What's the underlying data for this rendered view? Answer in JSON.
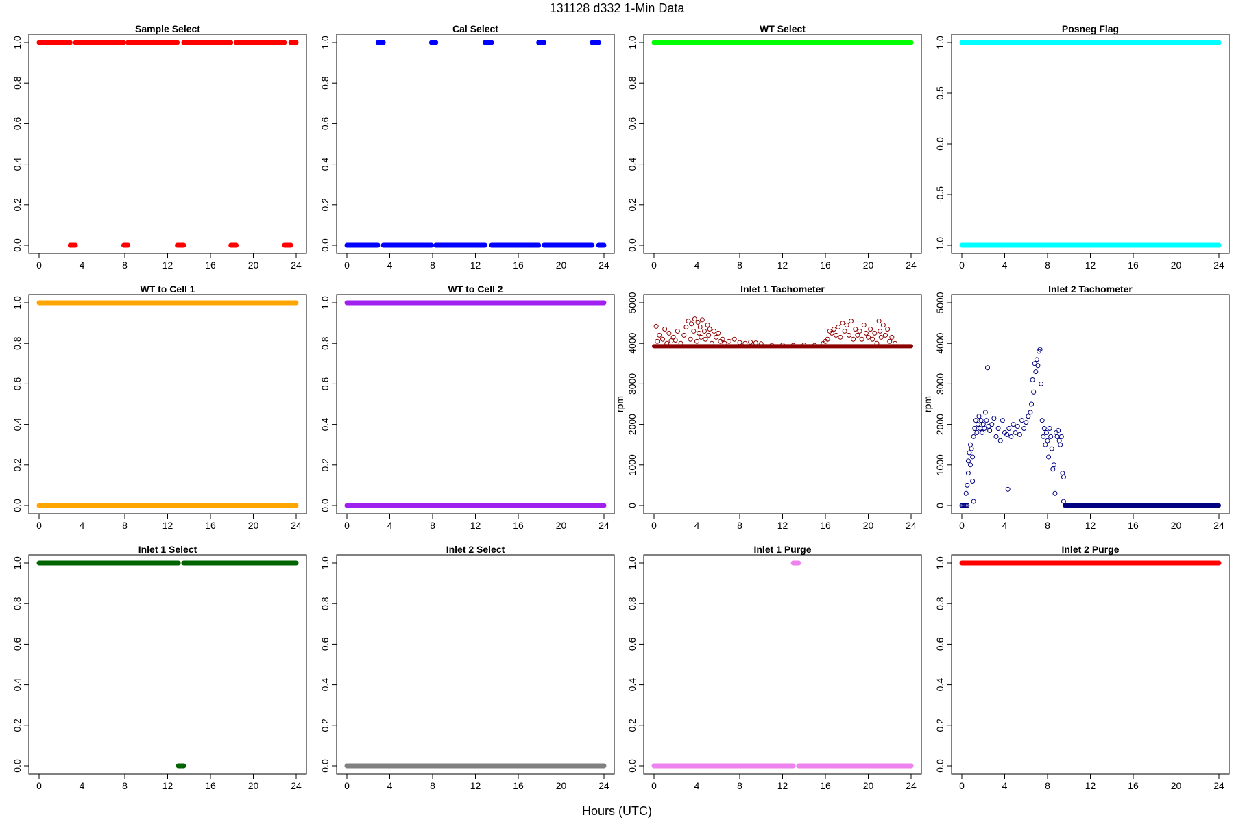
{
  "figure": {
    "title": "131128   d332   1-Min Data",
    "xlabel": "Hours (UTC)"
  },
  "chart_data": [
    {
      "type": "scatter",
      "title": "Sample Select",
      "ylabel": "",
      "color": "#ff0000",
      "xlim": [
        0,
        24
      ],
      "ylim": [
        0,
        1
      ],
      "x_ticks": [
        0,
        4,
        8,
        12,
        16,
        20,
        24
      ],
      "y_ticks": [
        0.0,
        0.2,
        0.4,
        0.6,
        0.8,
        1.0
      ],
      "y_tick_labels": [
        "0.0",
        "0.2",
        "0.4",
        "0.6",
        "0.8",
        "1.0"
      ],
      "segments": [
        {
          "from": 0.0,
          "to": 2.9,
          "y": 1
        },
        {
          "from": 2.9,
          "to": 3.4,
          "y": 0
        },
        {
          "from": 3.4,
          "to": 7.9,
          "y": 1
        },
        {
          "from": 7.9,
          "to": 8.3,
          "y": 0
        },
        {
          "from": 8.3,
          "to": 12.9,
          "y": 1
        },
        {
          "from": 12.9,
          "to": 13.5,
          "y": 0
        },
        {
          "from": 13.5,
          "to": 17.9,
          "y": 1
        },
        {
          "from": 17.9,
          "to": 18.4,
          "y": 0
        },
        {
          "from": 18.4,
          "to": 22.9,
          "y": 1
        },
        {
          "from": 22.9,
          "to": 23.5,
          "y": 0
        },
        {
          "from": 23.5,
          "to": 24.0,
          "y": 1
        }
      ]
    },
    {
      "type": "scatter",
      "title": "Cal Select",
      "ylabel": "",
      "color": "#0000ff",
      "xlim": [
        0,
        24
      ],
      "ylim": [
        0,
        1
      ],
      "x_ticks": [
        0,
        4,
        8,
        12,
        16,
        20,
        24
      ],
      "y_ticks": [
        0.0,
        0.2,
        0.4,
        0.6,
        0.8,
        1.0
      ],
      "y_tick_labels": [
        "0.0",
        "0.2",
        "0.4",
        "0.6",
        "0.8",
        "1.0"
      ],
      "segments": [
        {
          "from": 0.0,
          "to": 2.9,
          "y": 0
        },
        {
          "from": 2.9,
          "to": 3.4,
          "y": 1
        },
        {
          "from": 3.4,
          "to": 7.9,
          "y": 0
        },
        {
          "from": 7.9,
          "to": 8.3,
          "y": 1
        },
        {
          "from": 8.3,
          "to": 12.9,
          "y": 0
        },
        {
          "from": 12.9,
          "to": 13.5,
          "y": 1
        },
        {
          "from": 13.5,
          "to": 17.9,
          "y": 0
        },
        {
          "from": 17.9,
          "to": 18.4,
          "y": 1
        },
        {
          "from": 18.4,
          "to": 22.9,
          "y": 0
        },
        {
          "from": 22.9,
          "to": 23.5,
          "y": 1
        },
        {
          "from": 23.5,
          "to": 24.0,
          "y": 0
        }
      ]
    },
    {
      "type": "scatter",
      "title": "WT Select",
      "ylabel": "",
      "color": "#00ff00",
      "xlim": [
        0,
        24
      ],
      "ylim": [
        0,
        1
      ],
      "x_ticks": [
        0,
        4,
        8,
        12,
        16,
        20,
        24
      ],
      "y_ticks": [
        0.0,
        0.2,
        0.4,
        0.6,
        0.8,
        1.0
      ],
      "y_tick_labels": [
        "0.0",
        "0.2",
        "0.4",
        "0.6",
        "0.8",
        "1.0"
      ],
      "segments": [
        {
          "from": 0.0,
          "to": 24.0,
          "y": 1
        }
      ]
    },
    {
      "type": "scatter",
      "title": "Posneg Flag",
      "ylabel": "",
      "color": "#00ffff",
      "xlim": [
        0,
        24
      ],
      "ylim": [
        -1,
        1
      ],
      "x_ticks": [
        0,
        4,
        8,
        12,
        16,
        20,
        24
      ],
      "y_ticks": [
        -1.0,
        -0.5,
        0.0,
        0.5,
        1.0
      ],
      "y_tick_labels": [
        "-1.0",
        "-0.5",
        "0.0",
        "0.5",
        "1.0"
      ],
      "segments": [
        {
          "from": 0.0,
          "to": 24.0,
          "y": 1
        },
        {
          "from": 0.0,
          "to": 24.0,
          "y": -1
        }
      ]
    },
    {
      "type": "scatter",
      "title": "WT to Cell 1",
      "ylabel": "",
      "color": "#ffa500",
      "xlim": [
        0,
        24
      ],
      "ylim": [
        0,
        1
      ],
      "x_ticks": [
        0,
        4,
        8,
        12,
        16,
        20,
        24
      ],
      "y_ticks": [
        0.0,
        0.2,
        0.4,
        0.6,
        0.8,
        1.0
      ],
      "y_tick_labels": [
        "0.0",
        "0.2",
        "0.4",
        "0.6",
        "0.8",
        "1.0"
      ],
      "segments": [
        {
          "from": 0.0,
          "to": 24.0,
          "y": 1
        },
        {
          "from": 0.0,
          "to": 24.0,
          "y": 0
        }
      ]
    },
    {
      "type": "scatter",
      "title": "WT to Cell 2",
      "ylabel": "",
      "color": "#a020f0",
      "xlim": [
        0,
        24
      ],
      "ylim": [
        0,
        1
      ],
      "x_ticks": [
        0,
        4,
        8,
        12,
        16,
        20,
        24
      ],
      "y_ticks": [
        0.0,
        0.2,
        0.4,
        0.6,
        0.8,
        1.0
      ],
      "y_tick_labels": [
        "0.0",
        "0.2",
        "0.4",
        "0.6",
        "0.8",
        "1.0"
      ],
      "segments": [
        {
          "from": 0.0,
          "to": 24.0,
          "y": 1
        },
        {
          "from": 0.0,
          "to": 24.0,
          "y": 0
        }
      ]
    },
    {
      "type": "scatter",
      "title": "Inlet 1 Tachometer",
      "ylabel": "rpm",
      "color": "#8b0000",
      "marker": "circle",
      "xlim": [
        0,
        24
      ],
      "ylim": [
        0,
        5000
      ],
      "x_ticks": [
        0,
        4,
        8,
        12,
        16,
        20,
        24
      ],
      "y_ticks": [
        0,
        1000,
        2000,
        3000,
        4000,
        5000
      ],
      "y_tick_labels": [
        "0",
        "1000",
        "2000",
        "3000",
        "4000",
        "5000"
      ],
      "baseline": {
        "from": 0.0,
        "to": 24.0,
        "y": 3930
      },
      "points": [
        [
          0.2,
          4420
        ],
        [
          0.3,
          4050
        ],
        [
          0.5,
          4200
        ],
        [
          0.8,
          4100
        ],
        [
          1.0,
          4350
        ],
        [
          1.2,
          4000
        ],
        [
          1.4,
          4250
        ],
        [
          1.6,
          4060
        ],
        [
          1.8,
          4150
        ],
        [
          2.0,
          4080
        ],
        [
          2.2,
          4300
        ],
        [
          2.5,
          4000
        ],
        [
          2.8,
          4200
        ],
        [
          3.0,
          4400
        ],
        [
          3.2,
          4550
        ],
        [
          3.4,
          4100
        ],
        [
          3.5,
          4480
        ],
        [
          3.7,
          4300
        ],
        [
          3.8,
          4600
        ],
        [
          4.0,
          4050
        ],
        [
          4.1,
          4520
        ],
        [
          4.2,
          4250
        ],
        [
          4.3,
          4400
        ],
        [
          4.4,
          4150
        ],
        [
          4.5,
          4580
        ],
        [
          4.7,
          4300
        ],
        [
          4.8,
          4100
        ],
        [
          5.0,
          4450
        ],
        [
          5.1,
          4200
        ],
        [
          5.2,
          4350
        ],
        [
          5.4,
          4000
        ],
        [
          5.6,
          4300
        ],
        [
          5.8,
          4150
        ],
        [
          6.0,
          4250
        ],
        [
          6.2,
          4050
        ],
        [
          6.4,
          4100
        ],
        [
          6.6,
          4000
        ],
        [
          7.0,
          4050
        ],
        [
          7.5,
          4100
        ],
        [
          8.0,
          4020
        ],
        [
          8.5,
          4000
        ],
        [
          9.0,
          4030
        ],
        [
          9.5,
          4010
        ],
        [
          10.0,
          3990
        ],
        [
          11.0,
          3950
        ],
        [
          12.0,
          3960
        ],
        [
          13.0,
          3950
        ],
        [
          14.0,
          3960
        ],
        [
          15.0,
          3950
        ],
        [
          15.8,
          4000
        ],
        [
          16.0,
          4050
        ],
        [
          16.2,
          4100
        ],
        [
          16.4,
          4300
        ],
        [
          16.6,
          4250
        ],
        [
          16.8,
          4350
        ],
        [
          17.0,
          4200
        ],
        [
          17.2,
          4400
        ],
        [
          17.4,
          4150
        ],
        [
          17.6,
          4500
        ],
        [
          17.8,
          4300
        ],
        [
          18.0,
          4450
        ],
        [
          18.2,
          4200
        ],
        [
          18.4,
          4550
        ],
        [
          18.6,
          4100
        ],
        [
          18.8,
          4350
        ],
        [
          19.0,
          4200
        ],
        [
          19.2,
          4300
        ],
        [
          19.4,
          4100
        ],
        [
          19.6,
          4450
        ],
        [
          19.8,
          4250
        ],
        [
          20.0,
          4150
        ],
        [
          20.2,
          4350
        ],
        [
          20.4,
          4100
        ],
        [
          20.6,
          4250
        ],
        [
          20.8,
          4000
        ],
        [
          21.0,
          4550
        ],
        [
          21.1,
          4300
        ],
        [
          21.2,
          4150
        ],
        [
          21.4,
          4450
        ],
        [
          21.6,
          4200
        ],
        [
          21.8,
          4350
        ],
        [
          22.0,
          4050
        ],
        [
          22.2,
          4150
        ],
        [
          22.5,
          4000
        ]
      ]
    },
    {
      "type": "scatter",
      "title": "Inlet 2 Tachometer",
      "ylabel": "rpm",
      "color": "#000080",
      "marker": "circle",
      "xlim": [
        0,
        24
      ],
      "ylim": [
        0,
        5000
      ],
      "x_ticks": [
        0,
        4,
        8,
        12,
        16,
        20,
        24
      ],
      "y_ticks": [
        0,
        1000,
        2000,
        3000,
        4000,
        5000
      ],
      "y_tick_labels": [
        "0",
        "1000",
        "2000",
        "3000",
        "4000",
        "5000"
      ],
      "baseline": {
        "from": 9.6,
        "to": 24.0,
        "y": 0
      },
      "points": [
        [
          0.0,
          0
        ],
        [
          0.1,
          0
        ],
        [
          0.2,
          0
        ],
        [
          0.3,
          0
        ],
        [
          0.4,
          0
        ],
        [
          0.5,
          0
        ],
        [
          0.4,
          300
        ],
        [
          0.5,
          500
        ],
        [
          0.6,
          800
        ],
        [
          0.6,
          1100
        ],
        [
          0.7,
          1300
        ],
        [
          0.8,
          1000
        ],
        [
          0.8,
          1500
        ],
        [
          0.9,
          1400
        ],
        [
          1.0,
          600
        ],
        [
          1.0,
          1200
        ],
        [
          1.1,
          1700
        ],
        [
          1.1,
          100
        ],
        [
          1.2,
          1900
        ],
        [
          1.3,
          2100
        ],
        [
          1.4,
          1800
        ],
        [
          1.5,
          2000
        ],
        [
          1.6,
          2200
        ],
        [
          1.7,
          1900
        ],
        [
          1.8,
          2100
        ],
        [
          1.9,
          1800
        ],
        [
          2.0,
          2000
        ],
        [
          2.1,
          1900
        ],
        [
          2.2,
          2300
        ],
        [
          2.3,
          2100
        ],
        [
          2.4,
          3400
        ],
        [
          2.5,
          1950
        ],
        [
          2.6,
          1850
        ],
        [
          2.8,
          2000
        ],
        [
          3.0,
          2150
        ],
        [
          3.2,
          1700
        ],
        [
          3.4,
          1900
        ],
        [
          3.6,
          1600
        ],
        [
          3.8,
          2100
        ],
        [
          4.0,
          1800
        ],
        [
          4.2,
          1750
        ],
        [
          4.3,
          400
        ],
        [
          4.4,
          1900
        ],
        [
          4.6,
          1700
        ],
        [
          4.8,
          2000
        ],
        [
          5.0,
          1800
        ],
        [
          5.2,
          1950
        ],
        [
          5.4,
          1750
        ],
        [
          5.6,
          2100
        ],
        [
          5.8,
          1900
        ],
        [
          6.0,
          2050
        ],
        [
          6.2,
          2200
        ],
        [
          6.4,
          2300
        ],
        [
          6.5,
          2500
        ],
        [
          6.6,
          3100
        ],
        [
          6.7,
          2800
        ],
        [
          6.8,
          3500
        ],
        [
          6.9,
          3300
        ],
        [
          7.0,
          3600
        ],
        [
          7.1,
          3450
        ],
        [
          7.2,
          3800
        ],
        [
          7.3,
          3850
        ],
        [
          7.4,
          3000
        ],
        [
          7.5,
          2100
        ],
        [
          7.6,
          1700
        ],
        [
          7.7,
          1900
        ],
        [
          7.8,
          1500
        ],
        [
          7.9,
          1800
        ],
        [
          8.0,
          1600
        ],
        [
          8.1,
          1200
        ],
        [
          8.2,
          1900
        ],
        [
          8.3,
          1700
        ],
        [
          8.4,
          1400
        ],
        [
          8.5,
          900
        ],
        [
          8.6,
          1000
        ],
        [
          8.7,
          300
        ],
        [
          8.8,
          1800
        ],
        [
          8.9,
          1700
        ],
        [
          9.0,
          1850
        ],
        [
          9.1,
          1600
        ],
        [
          9.2,
          1500
        ],
        [
          9.3,
          1700
        ],
        [
          9.4,
          800
        ],
        [
          9.5,
          700
        ],
        [
          9.5,
          100
        ]
      ]
    },
    {
      "type": "scatter",
      "title": "Inlet 1 Select",
      "ylabel": "",
      "color": "#006400",
      "xlim": [
        0,
        24
      ],
      "ylim": [
        0,
        1
      ],
      "x_ticks": [
        0,
        4,
        8,
        12,
        16,
        20,
        24
      ],
      "y_ticks": [
        0.0,
        0.2,
        0.4,
        0.6,
        0.8,
        1.0
      ],
      "y_tick_labels": [
        "0.0",
        "0.2",
        "0.4",
        "0.6",
        "0.8",
        "1.0"
      ],
      "segments": [
        {
          "from": 0.0,
          "to": 13.0,
          "y": 1
        },
        {
          "from": 13.0,
          "to": 13.5,
          "y": 0
        },
        {
          "from": 13.5,
          "to": 24.0,
          "y": 1
        }
      ]
    },
    {
      "type": "scatter",
      "title": "Inlet 2 Select",
      "ylabel": "",
      "color": "#808080",
      "xlim": [
        0,
        24
      ],
      "ylim": [
        0,
        1
      ],
      "x_ticks": [
        0,
        4,
        8,
        12,
        16,
        20,
        24
      ],
      "y_ticks": [
        0.0,
        0.2,
        0.4,
        0.6,
        0.8,
        1.0
      ],
      "y_tick_labels": [
        "0.0",
        "0.2",
        "0.4",
        "0.6",
        "0.8",
        "1.0"
      ],
      "segments": [
        {
          "from": 0.0,
          "to": 24.0,
          "y": 0
        }
      ]
    },
    {
      "type": "scatter",
      "title": "Inlet 1 Purge",
      "ylabel": "",
      "color": "#ee82ee",
      "xlim": [
        0,
        24
      ],
      "ylim": [
        0,
        1
      ],
      "x_ticks": [
        0,
        4,
        8,
        12,
        16,
        20,
        24
      ],
      "y_ticks": [
        0.0,
        0.2,
        0.4,
        0.6,
        0.8,
        1.0
      ],
      "y_tick_labels": [
        "0.0",
        "0.2",
        "0.4",
        "0.6",
        "0.8",
        "1.0"
      ],
      "segments": [
        {
          "from": 0.0,
          "to": 13.0,
          "y": 0
        },
        {
          "from": 13.0,
          "to": 13.5,
          "y": 1
        },
        {
          "from": 13.5,
          "to": 24.0,
          "y": 0
        }
      ]
    },
    {
      "type": "scatter",
      "title": "Inlet 2 Purge",
      "ylabel": "",
      "color": "#ff0000",
      "xlim": [
        0,
        24
      ],
      "ylim": [
        0,
        1
      ],
      "x_ticks": [
        0,
        4,
        8,
        12,
        16,
        20,
        24
      ],
      "y_ticks": [
        0.0,
        0.2,
        0.4,
        0.6,
        0.8,
        1.0
      ],
      "y_tick_labels": [
        "0.0",
        "0.2",
        "0.4",
        "0.6",
        "0.8",
        "1.0"
      ],
      "segments": [
        {
          "from": 0.0,
          "to": 24.0,
          "y": 1
        }
      ]
    }
  ]
}
